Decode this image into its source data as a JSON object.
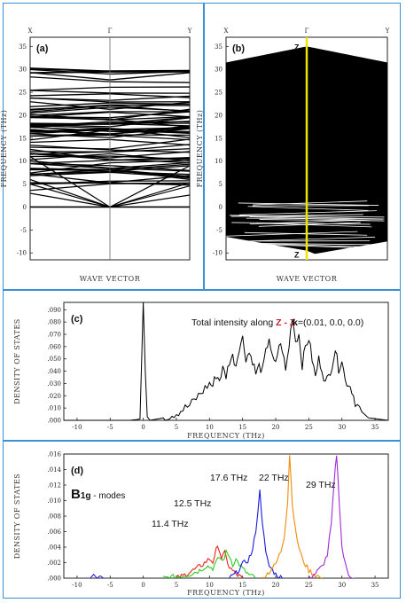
{
  "colors": {
    "frame": "#3a8fd6",
    "yellow_line": "#f1e300",
    "z_red": "#c0212b",
    "red": "#e8251c",
    "green": "#2ecb1f",
    "blue": "#1a1ae0",
    "orange": "#f28a0a",
    "purple": "#a22ad8"
  },
  "chart_data": [
    {
      "id": "a",
      "type": "line",
      "panel_label": "(a)",
      "xlabel": "WAVE VECTOR",
      "ylabel": "FREQUENCY (THz)",
      "x_tick_labels": [
        "X",
        "Γ",
        "Y"
      ],
      "yticks": [
        -10,
        -5,
        0,
        5,
        10,
        15,
        20,
        25,
        30,
        35
      ],
      "ylim": [
        -11.5,
        37
      ],
      "description": "phonon dispersion bands, all frequencies >= 0, acoustic branches going to 0 at Γ",
      "band_range": [
        0,
        31
      ]
    },
    {
      "id": "b",
      "type": "line",
      "panel_label": "(b)",
      "xlabel": "WAVE VECTOR",
      "ylabel": "FREQUENCY (THz)",
      "x_tick_labels": [
        "X",
        "Γ",
        "Y"
      ],
      "yticks": [
        -10,
        -5,
        0,
        5,
        10,
        15,
        20,
        25,
        30,
        35
      ],
      "ylim": [
        -11.5,
        37
      ],
      "marker_labels": [
        "Z",
        "Z"
      ],
      "band_range": [
        -10,
        35
      ]
    },
    {
      "id": "c",
      "type": "line",
      "panel_label": "(c)",
      "title_prefix": "Total intensity along",
      "title_path": "Z - Z",
      "k_label": "k",
      "k_value": "=(0.01, 0.0, 0.0)",
      "xlabel": "FREQUENCY (THz)",
      "ylabel": "DENSITY OF STATES",
      "xticks": [
        -10,
        -5,
        0,
        5,
        10,
        15,
        20,
        25,
        30,
        35
      ],
      "xlim": [
        -12,
        37
      ],
      "yticks": [
        ".000",
        ".010",
        ".020",
        ".030",
        ".040",
        ".050",
        ".060",
        ".070",
        ".080",
        ".090"
      ],
      "ylim": [
        0,
        0.096
      ],
      "x": [
        -12,
        -2,
        -0.5,
        0,
        0.3,
        0.6,
        1,
        3,
        5,
        7,
        8,
        9,
        10,
        10.5,
        11,
        11.5,
        12,
        12.5,
        13,
        13.5,
        14,
        14.5,
        15,
        15.5,
        16,
        16.5,
        17,
        17.5,
        18,
        18.5,
        19,
        19.5,
        20,
        20.5,
        21,
        21.5,
        22,
        22.5,
        23,
        23.5,
        24,
        24.5,
        25,
        25.5,
        26,
        26.5,
        27,
        27.5,
        28,
        28.5,
        29,
        29.5,
        30,
        30.5,
        31,
        31.5,
        32,
        33,
        34,
        37
      ],
      "y": [
        0,
        0,
        0.001,
        0.097,
        0.04,
        0.003,
        0,
        0.002,
        0.006,
        0.012,
        0.018,
        0.024,
        0.03,
        0.028,
        0.037,
        0.033,
        0.042,
        0.036,
        0.048,
        0.052,
        0.045,
        0.06,
        0.067,
        0.051,
        0.055,
        0.049,
        0.038,
        0.044,
        0.04,
        0.055,
        0.068,
        0.05,
        0.045,
        0.062,
        0.058,
        0.04,
        0.06,
        0.085,
        0.065,
        0.07,
        0.045,
        0.06,
        0.067,
        0.05,
        0.035,
        0.05,
        0.042,
        0.03,
        0.036,
        0.045,
        0.058,
        0.042,
        0.05,
        0.032,
        0.03,
        0.025,
        0.015,
        0.007,
        0.002,
        0
      ]
    },
    {
      "id": "d",
      "type": "line",
      "panel_label": "(d)",
      "mode_label": "B",
      "mode_sub": "1g",
      "mode_suffix": " - modes",
      "xlabel": "FREQUENCY (THz)",
      "ylabel": "DENSITY OF STATES",
      "xticks": [
        -10,
        -5,
        0,
        5,
        10,
        15,
        20,
        25,
        30,
        35
      ],
      "xlim": [
        -12,
        37
      ],
      "yticks": [
        ".000",
        ".002",
        ".004",
        ".006",
        ".008",
        ".010",
        ".012",
        ".014",
        ".016"
      ],
      "ylim": [
        0,
        0.016
      ],
      "peak_labels": [
        "11.4 THz",
        "12.5 THz",
        "17.6 THz",
        "22 THz",
        "29 THz"
      ],
      "series": [
        {
          "color": "red",
          "peak": 11.4,
          "x": [
            5,
            6,
            7,
            8,
            9,
            10,
            10.5,
            11,
            11.4,
            11.8,
            12.3,
            13,
            14,
            15
          ],
          "y": [
            0,
            0.0003,
            0.0008,
            0.0012,
            0.0018,
            0.0025,
            0.0021,
            0.0036,
            0.004,
            0.0026,
            0.0032,
            0.0014,
            0.0005,
            0
          ]
        },
        {
          "color": "green",
          "peak": 12.5,
          "x": [
            3,
            5,
            7,
            8.5,
            9.5,
            10.5,
            11.5,
            12,
            12.5,
            13,
            13.5,
            14,
            15,
            16,
            17
          ],
          "y": [
            0,
            0.0002,
            0.0005,
            0.001,
            0.0016,
            0.0013,
            0.0027,
            0.0022,
            0.0033,
            0.0029,
            0.0018,
            0.0024,
            0.0012,
            0.0004,
            0
          ]
        },
        {
          "color": "blue",
          "peak": 17.6,
          "x": [
            13,
            14,
            15,
            15.8,
            16.5,
            17,
            17.6,
            18,
            18.5,
            19,
            20,
            21
          ],
          "y": [
            0,
            0.0006,
            0.0018,
            0.0023,
            0.0035,
            0.0062,
            0.0112,
            0.0072,
            0.0032,
            0.0016,
            0.0005,
            0
          ]
        },
        {
          "color": "orange",
          "peak": 22,
          "x": [
            18,
            19,
            20,
            20.8,
            21.3,
            21.8,
            22.1,
            22.5,
            23,
            23.5,
            24,
            25,
            26,
            27
          ],
          "y": [
            0,
            0.0008,
            0.0018,
            0.0035,
            0.0055,
            0.01,
            0.016,
            0.0098,
            0.006,
            0.004,
            0.0025,
            0.001,
            0.0004,
            0
          ]
        },
        {
          "color": "purple",
          "peak": 29,
          "x": [
            25,
            26,
            27,
            27.8,
            28.4,
            28.8,
            29.2,
            29.6,
            30,
            30.5,
            31,
            32
          ],
          "y": [
            0,
            0.0006,
            0.0015,
            0.003,
            0.007,
            0.012,
            0.016,
            0.01,
            0.004,
            0.0018,
            0.0005,
            0
          ]
        }
      ]
    }
  ]
}
